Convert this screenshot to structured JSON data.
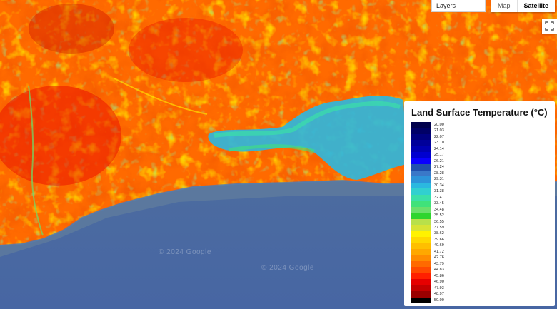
{
  "map": {
    "controls": {
      "layers_label": "Layers",
      "map_label": "Map",
      "satellite_label": "Satellite",
      "selected_type": "Satellite"
    },
    "watermarks": [
      "© 2024 Google",
      "© 2024 Google"
    ],
    "icons": {
      "fullscreen": "fullscreen-icon"
    }
  },
  "legend": {
    "title": "Land Surface Temperature (°C)",
    "entries": [
      {
        "label": "20.00",
        "color": "#00004c"
      },
      {
        "label": "21.03",
        "color": "#000066"
      },
      {
        "label": "22.07",
        "color": "#000080"
      },
      {
        "label": "23.10",
        "color": "#00009a"
      },
      {
        "label": "24.14",
        "color": "#0000b3"
      },
      {
        "label": "25.17",
        "color": "#0000d0"
      },
      {
        "label": "26.21",
        "color": "#0a00ff"
      },
      {
        "label": "27.24",
        "color": "#2050ad"
      },
      {
        "label": "28.28",
        "color": "#3a78c8"
      },
      {
        "label": "29.31",
        "color": "#2d93d9"
      },
      {
        "label": "30.34",
        "color": "#2bb8e0"
      },
      {
        "label": "31.38",
        "color": "#31d0d0"
      },
      {
        "label": "32.41",
        "color": "#3be0a8"
      },
      {
        "label": "33.45",
        "color": "#40e27a"
      },
      {
        "label": "34.48",
        "color": "#6be06b"
      },
      {
        "label": "35.52",
        "color": "#2ed52e"
      },
      {
        "label": "36.55",
        "color": "#b8e04a"
      },
      {
        "label": "37.59",
        "color": "#d7e335"
      },
      {
        "label": "38.62",
        "color": "#fff200"
      },
      {
        "label": "39.66",
        "color": "#ffd800"
      },
      {
        "label": "40.69",
        "color": "#ffbf00"
      },
      {
        "label": "41.72",
        "color": "#ffa800"
      },
      {
        "label": "42.76",
        "color": "#ff8c00"
      },
      {
        "label": "43.79",
        "color": "#ff6a00"
      },
      {
        "label": "44.83",
        "color": "#ff4a00"
      },
      {
        "label": "45.86",
        "color": "#ff2000"
      },
      {
        "label": "46.90",
        "color": "#e60000"
      },
      {
        "label": "47.93",
        "color": "#c40000"
      },
      {
        "label": "48.97",
        "color": "#9a0000"
      },
      {
        "label": "50.00",
        "color": "#000000"
      }
    ]
  }
}
